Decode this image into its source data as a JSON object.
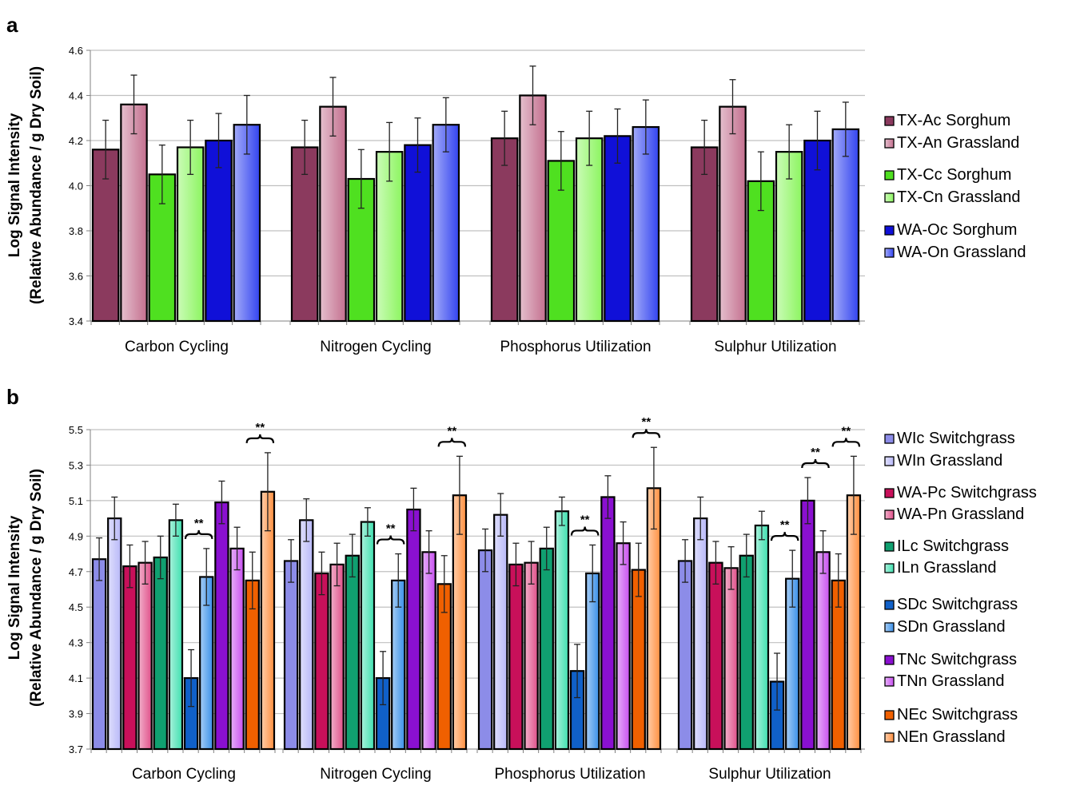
{
  "chart_data": [
    {
      "panel": "a",
      "type": "bar",
      "ylabel_line1": "Log Signal Intensity",
      "ylabel_line2": "(Relative Abundance / g Dry Soil)",
      "ylim": [
        3.4,
        4.6
      ],
      "yticks": [
        "3.4",
        "3.6",
        "3.8",
        "4.0",
        "4.2",
        "4.4",
        "4.6"
      ],
      "grid": true,
      "legend_position": "right",
      "categories": [
        "Carbon Cycling",
        "Nitrogen Cycling",
        "Phosphorus Utilization",
        "Sulphur Utilization"
      ],
      "series": [
        {
          "name": "TX-Ac Sorghum",
          "color": "#8b3a5e",
          "values": [
            4.16,
            4.17,
            4.21,
            4.17
          ],
          "errors": [
            0.13,
            0.12,
            0.12,
            0.12
          ]
        },
        {
          "name": "TX-An Grassland",
          "color": "#c4708f",
          "values": [
            4.36,
            4.35,
            4.4,
            4.35
          ],
          "errors": [
            0.13,
            0.13,
            0.13,
            0.12
          ]
        },
        {
          "name": "TX-Cc Sorghum",
          "color": "#4fe020",
          "values": [
            4.05,
            4.03,
            4.11,
            4.02
          ],
          "errors": [
            0.13,
            0.13,
            0.13,
            0.13
          ]
        },
        {
          "name": "TX-Cn Grassland",
          "color": "#8cf560",
          "values": [
            4.17,
            4.15,
            4.21,
            4.15
          ],
          "errors": [
            0.12,
            0.13,
            0.12,
            0.12
          ]
        },
        {
          "name": "WA-Oc Sorghum",
          "color": "#1010d8",
          "values": [
            4.2,
            4.18,
            4.22,
            4.2
          ],
          "errors": [
            0.12,
            0.12,
            0.12,
            0.13
          ]
        },
        {
          "name": "WA-On Grassland",
          "color": "#3344f0",
          "values": [
            4.27,
            4.27,
            4.26,
            4.25
          ],
          "errors": [
            0.13,
            0.12,
            0.12,
            0.12
          ]
        }
      ]
    },
    {
      "panel": "b",
      "type": "bar",
      "ylabel_line1": "Log Signal Intensity",
      "ylabel_line2": "(Relative Abundance / g Dry Soil)",
      "ylim": [
        3.7,
        5.5
      ],
      "yticks": [
        "3.7",
        "3.9",
        "4.1",
        "4.3",
        "4.5",
        "4.7",
        "4.9",
        "5.1",
        "5.3",
        "5.5"
      ],
      "grid": true,
      "legend_position": "right",
      "significance_label": "**",
      "categories": [
        "Carbon Cycling",
        "Nitrogen Cycling",
        "Phosphorus Utilization",
        "Sulphur Utilization"
      ],
      "series": [
        {
          "name": "WIc Switchgrass",
          "color": "#8c8ce8",
          "values": [
            4.77,
            4.76,
            4.82,
            4.76
          ],
          "errors": [
            0.12,
            0.12,
            0.12,
            0.12
          ]
        },
        {
          "name": "WIn Grassland",
          "color": "#b8b8f8",
          "values": [
            5.0,
            4.99,
            5.02,
            5.0
          ],
          "errors": [
            0.12,
            0.12,
            0.12,
            0.12
          ]
        },
        {
          "name": "WA-Pc Switchgrass",
          "color": "#c8105a",
          "values": [
            4.73,
            4.69,
            4.74,
            4.75
          ],
          "errors": [
            0.12,
            0.12,
            0.12,
            0.12
          ]
        },
        {
          "name": "WA-Pn Grassland",
          "color": "#e0508a",
          "values": [
            4.75,
            4.74,
            4.75,
            4.72
          ],
          "errors": [
            0.12,
            0.12,
            0.12,
            0.12
          ]
        },
        {
          "name": "ILc Switchgrass",
          "color": "#10a070",
          "values": [
            4.78,
            4.79,
            4.83,
            4.79
          ],
          "errors": [
            0.12,
            0.12,
            0.12,
            0.12
          ]
        },
        {
          "name": "ILn Grassland",
          "color": "#40e0b0",
          "values": [
            4.99,
            4.98,
            5.04,
            4.96
          ],
          "errors": [
            0.09,
            0.08,
            0.08,
            0.08
          ]
        },
        {
          "name": "SDc Switchgrass",
          "color": "#1060c8",
          "values": [
            4.1,
            4.1,
            4.14,
            4.08
          ],
          "errors": [
            0.16,
            0.15,
            0.15,
            0.16
          ]
        },
        {
          "name": "SDn Grassland",
          "color": "#3a90e8",
          "values": [
            4.67,
            4.65,
            4.69,
            4.66
          ],
          "errors": [
            0.16,
            0.15,
            0.16,
            0.16
          ]
        },
        {
          "name": "TNc Switchgrass",
          "color": "#8a10d0",
          "values": [
            5.09,
            5.05,
            5.12,
            5.1
          ],
          "errors": [
            0.12,
            0.12,
            0.12,
            0.13
          ]
        },
        {
          "name": "TNn Grassland",
          "color": "#c850f0",
          "values": [
            4.83,
            4.81,
            4.86,
            4.81
          ],
          "errors": [
            0.12,
            0.12,
            0.12,
            0.12
          ]
        },
        {
          "name": "NEc Switchgrass",
          "color": "#f06000",
          "values": [
            4.65,
            4.63,
            4.71,
            4.65
          ],
          "errors": [
            0.16,
            0.16,
            0.15,
            0.15
          ]
        },
        {
          "name": "NEn Grassland",
          "color": "#ff9040",
          "values": [
            5.15,
            5.13,
            5.17,
            5.13
          ],
          "errors": [
            0.22,
            0.22,
            0.23,
            0.22
          ]
        }
      ],
      "significant_pairs": [
        {
          "category": 0,
          "pair": [
            6,
            7
          ]
        },
        {
          "category": 0,
          "pair": [
            10,
            11
          ]
        },
        {
          "category": 1,
          "pair": [
            6,
            7
          ]
        },
        {
          "category": 1,
          "pair": [
            10,
            11
          ]
        },
        {
          "category": 2,
          "pair": [
            6,
            7
          ]
        },
        {
          "category": 2,
          "pair": [
            10,
            11
          ]
        },
        {
          "category": 3,
          "pair": [
            6,
            7
          ]
        },
        {
          "category": 3,
          "pair": [
            8,
            9
          ]
        },
        {
          "category": 3,
          "pair": [
            10,
            11
          ]
        }
      ]
    }
  ]
}
